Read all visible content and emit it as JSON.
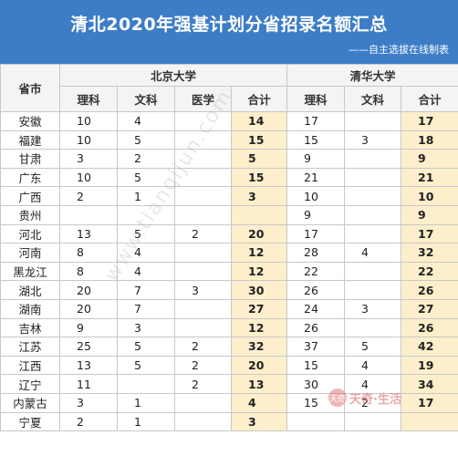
{
  "header": {
    "title": "清北2020年强基计划分省招录名额汇总",
    "subtitle": "——自主选拔在线制表"
  },
  "columns": {
    "province": "省市",
    "pku": "北京大学",
    "thu": "清华大学",
    "science": "理科",
    "arts": "文科",
    "medicine": "医学",
    "total": "合计"
  },
  "rows": [
    {
      "province": "安徽",
      "pku_sci": "10",
      "pku_arts": "4",
      "pku_med": "",
      "pku_total": "14",
      "thu_sci": "17",
      "thu_arts": "",
      "thu_total": "17"
    },
    {
      "province": "福建",
      "pku_sci": "10",
      "pku_arts": "5",
      "pku_med": "",
      "pku_total": "15",
      "thu_sci": "15",
      "thu_arts": "3",
      "thu_total": "18"
    },
    {
      "province": "甘肃",
      "pku_sci": "3",
      "pku_arts": "2",
      "pku_med": "",
      "pku_total": "5",
      "thu_sci": "9",
      "thu_arts": "",
      "thu_total": "9"
    },
    {
      "province": "广东",
      "pku_sci": "10",
      "pku_arts": "5",
      "pku_med": "",
      "pku_total": "15",
      "thu_sci": "21",
      "thu_arts": "",
      "thu_total": "21"
    },
    {
      "province": "广西",
      "pku_sci": "2",
      "pku_arts": "1",
      "pku_med": "",
      "pku_total": "3",
      "thu_sci": "10",
      "thu_arts": "",
      "thu_total": "10"
    },
    {
      "province": "贵州",
      "pku_sci": "",
      "pku_arts": "",
      "pku_med": "",
      "pku_total": "",
      "thu_sci": "9",
      "thu_arts": "",
      "thu_total": "9"
    },
    {
      "province": "河北",
      "pku_sci": "13",
      "pku_arts": "5",
      "pku_med": "2",
      "pku_total": "20",
      "thu_sci": "17",
      "thu_arts": "",
      "thu_total": "17"
    },
    {
      "province": "河南",
      "pku_sci": "8",
      "pku_arts": "4",
      "pku_med": "",
      "pku_total": "12",
      "thu_sci": "28",
      "thu_arts": "4",
      "thu_total": "32"
    },
    {
      "province": "黑龙江",
      "pku_sci": "8",
      "pku_arts": "4",
      "pku_med": "",
      "pku_total": "12",
      "thu_sci": "22",
      "thu_arts": "",
      "thu_total": "22"
    },
    {
      "province": "湖北",
      "pku_sci": "20",
      "pku_arts": "7",
      "pku_med": "3",
      "pku_total": "30",
      "thu_sci": "26",
      "thu_arts": "",
      "thu_total": "26"
    },
    {
      "province": "湖南",
      "pku_sci": "20",
      "pku_arts": "7",
      "pku_med": "",
      "pku_total": "27",
      "thu_sci": "24",
      "thu_arts": "3",
      "thu_total": "27"
    },
    {
      "province": "吉林",
      "pku_sci": "9",
      "pku_arts": "3",
      "pku_med": "",
      "pku_total": "12",
      "thu_sci": "26",
      "thu_arts": "",
      "thu_total": "26"
    },
    {
      "province": "江苏",
      "pku_sci": "25",
      "pku_arts": "5",
      "pku_med": "2",
      "pku_total": "32",
      "thu_sci": "37",
      "thu_arts": "5",
      "thu_total": "42"
    },
    {
      "province": "江西",
      "pku_sci": "13",
      "pku_arts": "5",
      "pku_med": "2",
      "pku_total": "20",
      "thu_sci": "15",
      "thu_arts": "4",
      "thu_total": "19"
    },
    {
      "province": "辽宁",
      "pku_sci": "11",
      "pku_arts": "",
      "pku_med": "2",
      "pku_total": "13",
      "thu_sci": "30",
      "thu_arts": "4",
      "thu_total": "34"
    },
    {
      "province": "内蒙古",
      "pku_sci": "3",
      "pku_arts": "1",
      "pku_med": "",
      "pku_total": "4",
      "thu_sci": "15",
      "thu_arts": "2",
      "thu_total": "17"
    },
    {
      "province": "宁夏",
      "pku_sci": "2",
      "pku_arts": "1",
      "pku_med": "",
      "pku_total": "3",
      "thu_sci": "",
      "thu_arts": "",
      "thu_total": ""
    }
  ],
  "watermark": "www.tianqijun.com",
  "logo": {
    "mark": "天奇",
    "text": "天奇·生活"
  }
}
